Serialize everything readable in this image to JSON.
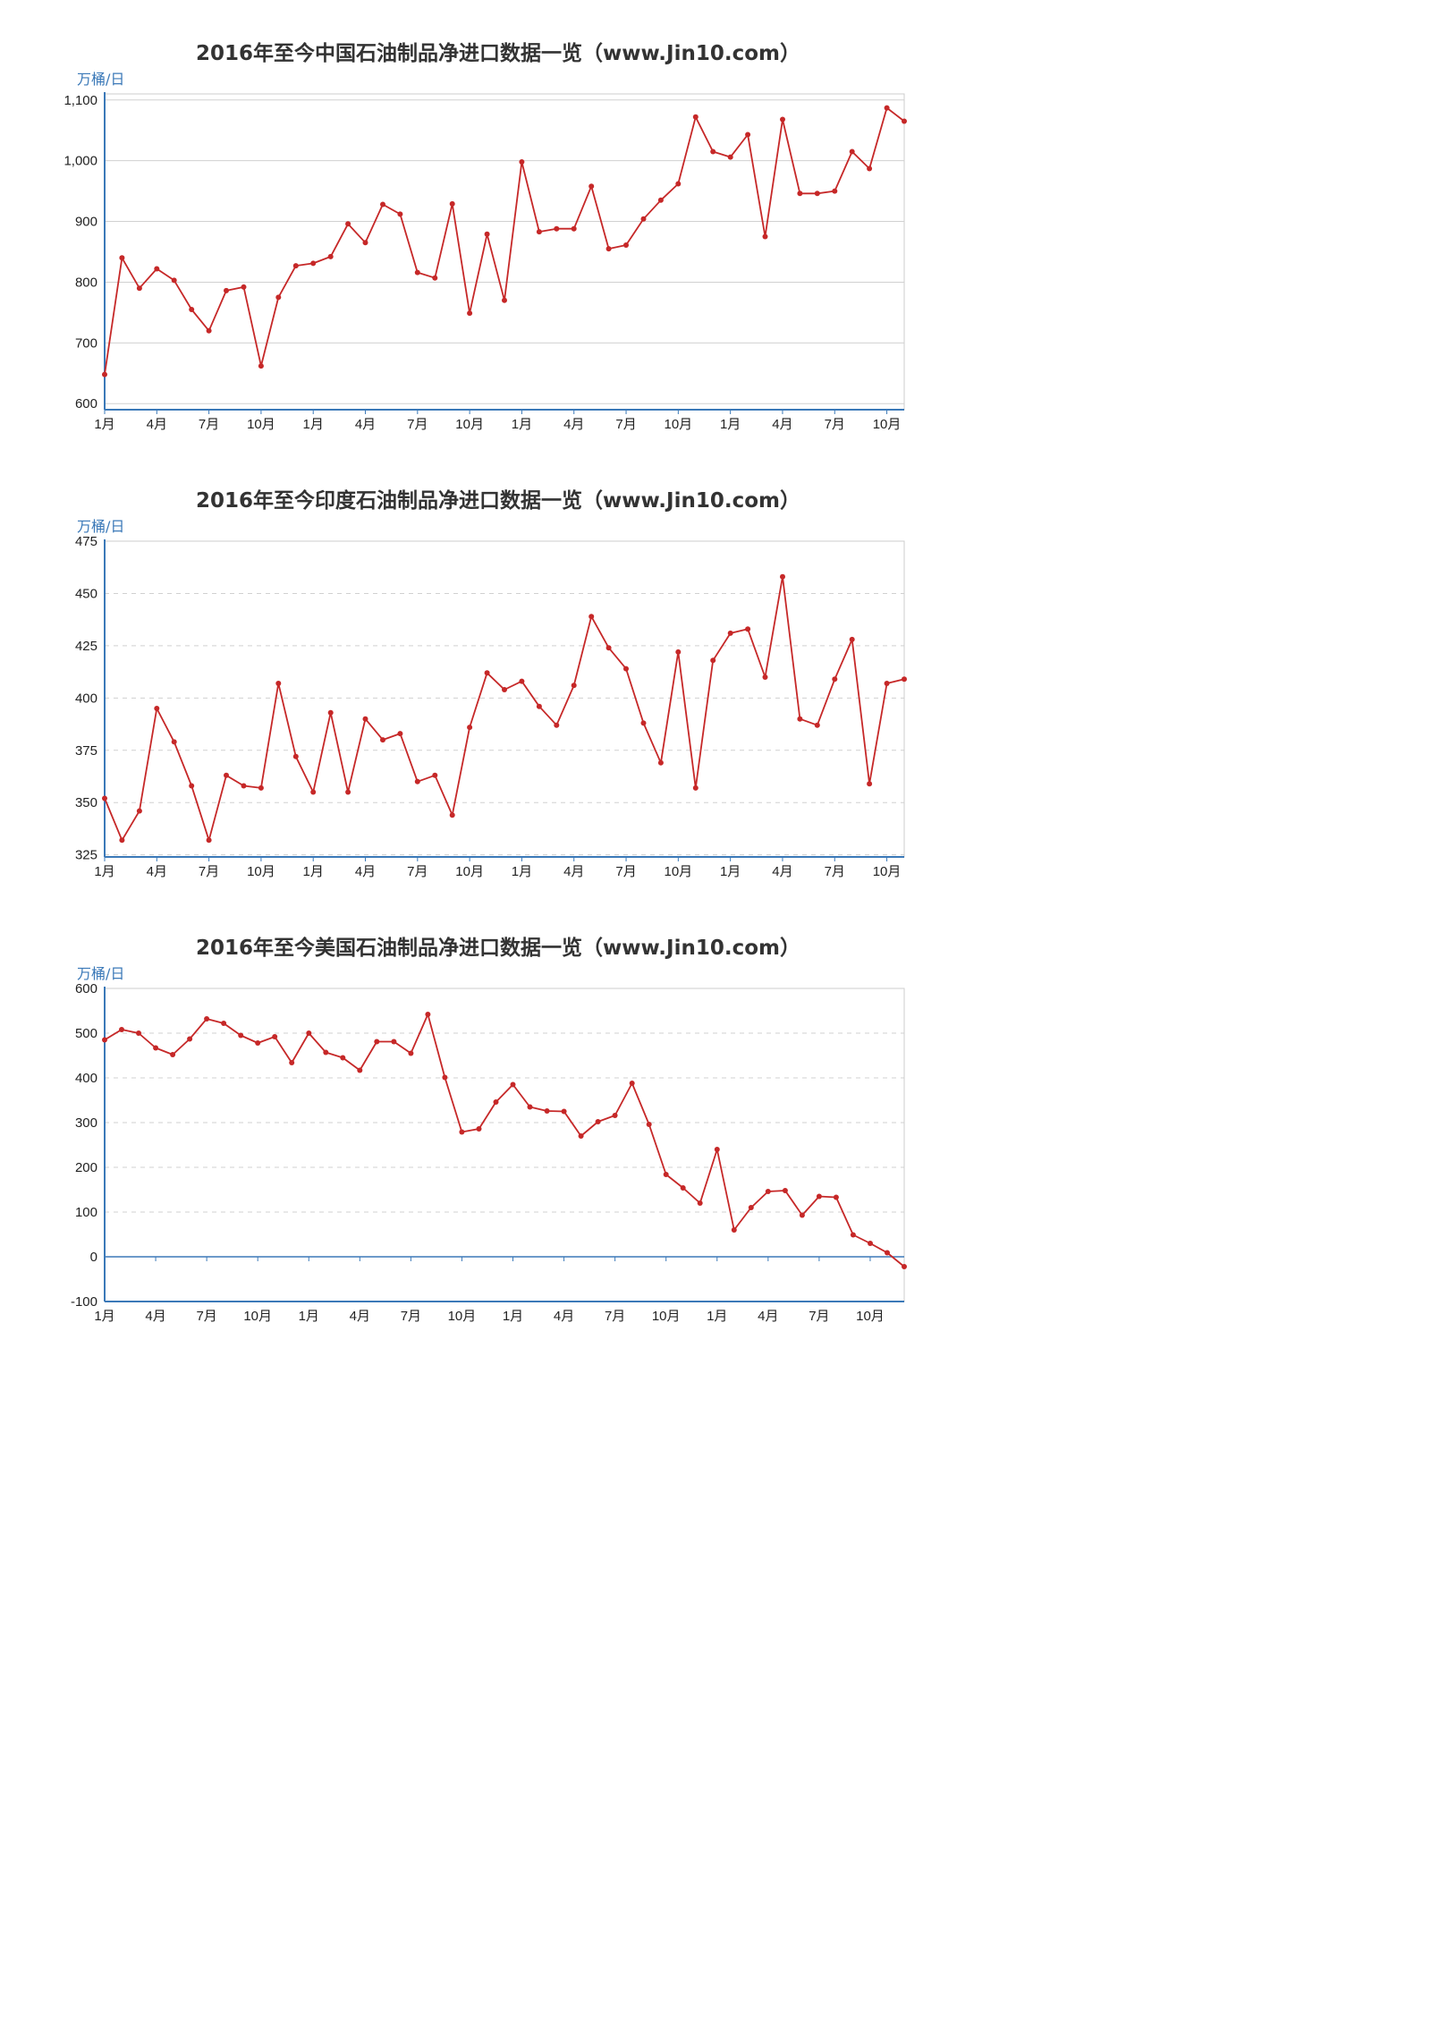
{
  "colors": {
    "series": "#c62828",
    "axis": "#3b79b8",
    "frame": "#cccccc",
    "grid": "#d0d0d0",
    "title": "#333333",
    "tick": "#222222"
  },
  "chart_data": [
    {
      "type": "line",
      "title": "2016年至今中国石油制品净进口数据一览（www.Jin10.com）",
      "unit": "万桶/日",
      "ylim": [
        590,
        1110
      ],
      "yticks": [
        600,
        700,
        800,
        900,
        1000,
        1100
      ],
      "ytick_labels": [
        "600",
        "700",
        "800",
        "900",
        "1,000",
        "1,100"
      ],
      "grid": "solid",
      "zero_line": false,
      "x": [
        "2016-01",
        "2016-02",
        "2016-03",
        "2016-04",
        "2016-05",
        "2016-06",
        "2016-07",
        "2016-08",
        "2016-09",
        "2016-10",
        "2016-11",
        "2016-12",
        "2017-01",
        "2017-02",
        "2017-03",
        "2017-04",
        "2017-05",
        "2017-06",
        "2017-07",
        "2017-08",
        "2017-09",
        "2017-10",
        "2017-11",
        "2017-12",
        "2018-01",
        "2018-02",
        "2018-03",
        "2018-04",
        "2018-05",
        "2018-06",
        "2018-07",
        "2018-08",
        "2018-09",
        "2018-10",
        "2018-11",
        "2018-12",
        "2019-01",
        "2019-02",
        "2019-03",
        "2019-04",
        "2019-05",
        "2019-06",
        "2019-07",
        "2019-08",
        "2019-09",
        "2019-10",
        "2019-11"
      ],
      "xtick_positions": [
        0,
        3,
        6,
        9,
        12,
        15,
        18,
        21,
        24,
        27,
        30,
        33,
        36,
        39,
        42,
        45
      ],
      "xtick_labels": [
        "1月",
        "4月",
        "7月",
        "10月",
        "1月",
        "4月",
        "7月",
        "10月",
        "1月",
        "4月",
        "7月",
        "10月",
        "1月",
        "4月",
        "7月",
        "10月"
      ],
      "series": [
        {
          "values": [
            648,
            840,
            790,
            822,
            803,
            755,
            720,
            786,
            792,
            662,
            775,
            827,
            831,
            842,
            896,
            865,
            928,
            912,
            816,
            807,
            929,
            749,
            879,
            770,
            998,
            883,
            888,
            888,
            958,
            855,
            861,
            904,
            935,
            962,
            1072,
            1015,
            1006,
            1043,
            875,
            1068,
            946,
            946,
            950,
            1015,
            987,
            1087,
            1065
          ]
        }
      ]
    },
    {
      "type": "line",
      "title": "2016年至今印度石油制品净进口数据一览（www.Jin10.com）",
      "unit": "万桶/日",
      "ylim": [
        324,
        475
      ],
      "yticks": [
        325,
        350,
        375,
        400,
        425,
        450,
        475
      ],
      "ytick_labels": [
        "325",
        "350",
        "375",
        "400",
        "425",
        "450",
        "475"
      ],
      "grid": "dashed",
      "zero_line": false,
      "x": [
        "2016-01",
        "2016-02",
        "2016-03",
        "2016-04",
        "2016-05",
        "2016-06",
        "2016-07",
        "2016-08",
        "2016-09",
        "2016-10",
        "2016-11",
        "2016-12",
        "2017-01",
        "2017-02",
        "2017-03",
        "2017-04",
        "2017-05",
        "2017-06",
        "2017-07",
        "2017-08",
        "2017-09",
        "2017-10",
        "2017-11",
        "2017-12",
        "2018-01",
        "2018-02",
        "2018-03",
        "2018-04",
        "2018-05",
        "2018-06",
        "2018-07",
        "2018-08",
        "2018-09",
        "2018-10",
        "2018-11",
        "2018-12",
        "2019-01",
        "2019-02",
        "2019-03",
        "2019-04",
        "2019-05",
        "2019-06",
        "2019-07",
        "2019-08",
        "2019-09",
        "2019-10",
        "2019-11"
      ],
      "xtick_positions": [
        0,
        3,
        6,
        9,
        12,
        15,
        18,
        21,
        24,
        27,
        30,
        33,
        36,
        39,
        42,
        45
      ],
      "xtick_labels": [
        "1月",
        "4月",
        "7月",
        "10月",
        "1月",
        "4月",
        "7月",
        "10月",
        "1月",
        "4月",
        "7月",
        "10月",
        "1月",
        "4月",
        "7月",
        "10月"
      ],
      "series": [
        {
          "values": [
            352,
            332,
            346,
            395,
            379,
            358,
            332,
            363,
            358,
            357,
            407,
            372,
            355,
            393,
            355,
            390,
            380,
            383,
            360,
            363,
            344,
            386,
            412,
            404,
            408,
            396,
            387,
            406,
            439,
            424,
            414,
            388,
            369,
            422,
            357,
            418,
            431,
            433,
            410,
            458,
            390,
            387,
            409,
            428,
            359,
            407,
            409
          ]
        }
      ]
    },
    {
      "type": "line",
      "title": "2016年至今美国石油制品净进口数据一览（www.Jin10.com）",
      "unit": "万桶/日",
      "ylim": [
        -100,
        600
      ],
      "yticks": [
        -100,
        0,
        100,
        200,
        300,
        400,
        500,
        600
      ],
      "ytick_labels": [
        "-100",
        "0",
        "100",
        "200",
        "300",
        "400",
        "500",
        "600"
      ],
      "grid": "dashed",
      "zero_line": true,
      "x": [
        "2016-01",
        "2016-02",
        "2016-03",
        "2016-04",
        "2016-05",
        "2016-06",
        "2016-07",
        "2016-08",
        "2016-09",
        "2016-10",
        "2016-11",
        "2016-12",
        "2017-01",
        "2017-02",
        "2017-03",
        "2017-04",
        "2017-05",
        "2017-06",
        "2017-07",
        "2017-08",
        "2017-09",
        "2017-10",
        "2017-11",
        "2017-12",
        "2018-01",
        "2018-02",
        "2018-03",
        "2018-04",
        "2018-05",
        "2018-06",
        "2018-07",
        "2018-08",
        "2018-09",
        "2018-10",
        "2018-11",
        "2018-12",
        "2019-01",
        "2019-02",
        "2019-03",
        "2019-04",
        "2019-05",
        "2019-06",
        "2019-07",
        "2019-08",
        "2019-09",
        "2019-10",
        "2019-11",
        "2019-12"
      ],
      "xtick_positions": [
        0,
        3,
        6,
        9,
        12,
        15,
        18,
        21,
        24,
        27,
        30,
        33,
        36,
        39,
        42,
        45
      ],
      "xtick_labels": [
        "1月",
        "4月",
        "7月",
        "10月",
        "1月",
        "4月",
        "7月",
        "10月",
        "1月",
        "4月",
        "7月",
        "10月",
        "1月",
        "4月",
        "7月",
        "10月"
      ],
      "series": [
        {
          "values": [
            485,
            508,
            500,
            467,
            452,
            487,
            532,
            522,
            495,
            478,
            492,
            434,
            500,
            457,
            445,
            417,
            481,
            481,
            455,
            542,
            401,
            279,
            286,
            346,
            385,
            335,
            326,
            325,
            270,
            302,
            316,
            388,
            296,
            184,
            154,
            120,
            240,
            60,
            110,
            146,
            148,
            93,
            135,
            133,
            49,
            30,
            9,
            -22
          ]
        }
      ]
    }
  ]
}
